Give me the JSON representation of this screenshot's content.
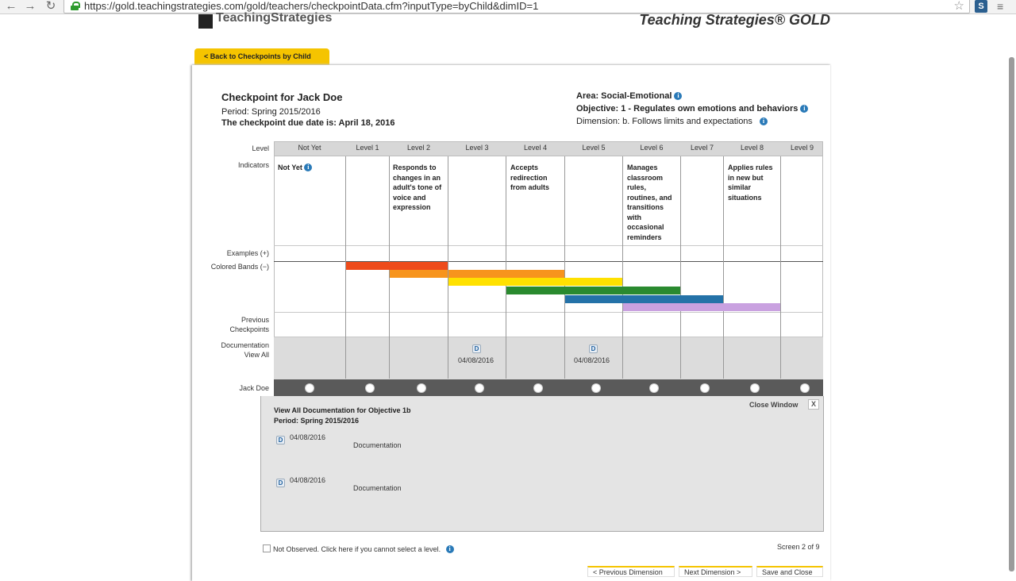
{
  "browser": {
    "url": "https://gold.teachingstrategies.com/gold/teachers/checkpointData.cfm?inputType=byChild&dimID=1",
    "ext_label": "S"
  },
  "header": {
    "logo_left": "TeachingStrategies",
    "logo_right": "Teaching Strategies® GOLD"
  },
  "back_tab": "< Back to Checkpoints by Child",
  "checkpoint": {
    "title": "Checkpoint for Jack Doe",
    "period": "Period: Spring 2015/2016",
    "due": "The checkpoint due date is: April 18, 2016",
    "area": "Area: Social-Emotional",
    "objective": "Objective: 1 - Regulates own emotions and behaviors",
    "dimension": "Dimension: b. Follows limits and expectations"
  },
  "row_labels": {
    "level": "Level",
    "indicators": "Indicators",
    "examples": "Examples (+)",
    "colored_bands": "Colored Bands (−)",
    "previous": "Previous Checkpoints",
    "documentation": "Documentation View All",
    "child": "Jack Doe"
  },
  "levels": [
    "Not Yet",
    "Level 1",
    "Level 2",
    "Level 3",
    "Level 4",
    "Level 5",
    "Level 6",
    "Level 7",
    "Level 8",
    "Level 9"
  ],
  "indicators": {
    "not_yet": "Not Yet",
    "level2": "Responds to changes in an adult's tone of voice and expression",
    "level4": "Accepts redirection from adults",
    "level6": "Manages classroom rules, routines, and transitions with occasional reminders",
    "level8": "Applies rules in new but similar situations"
  },
  "bands": {
    "colors": {
      "red": "#ee4b1b",
      "orange": "#f7941d",
      "yellow": "#ffe100",
      "green": "#2a8a2f",
      "blue": "#2472a8",
      "purple": "#c9a1e0"
    }
  },
  "documentation": {
    "icon_letter": "D",
    "dates": [
      "04/08/2016",
      "04/08/2016"
    ]
  },
  "view_all": {
    "title": "View All Documentation for Objective 1b",
    "period": "Period: Spring 2015/2016",
    "close": "Close Window",
    "close_x": "X",
    "items": [
      {
        "date": "04/08/2016",
        "label": "Documentation"
      },
      {
        "date": "04/08/2016",
        "label": "Documentation"
      }
    ]
  },
  "footer": {
    "not_observed": "Not Observed. Click here if you cannot select a level.",
    "screen": "Screen 2 of 9",
    "buttons": [
      "< Previous Dimension",
      "Next Dimension >",
      "Save and Close"
    ]
  }
}
